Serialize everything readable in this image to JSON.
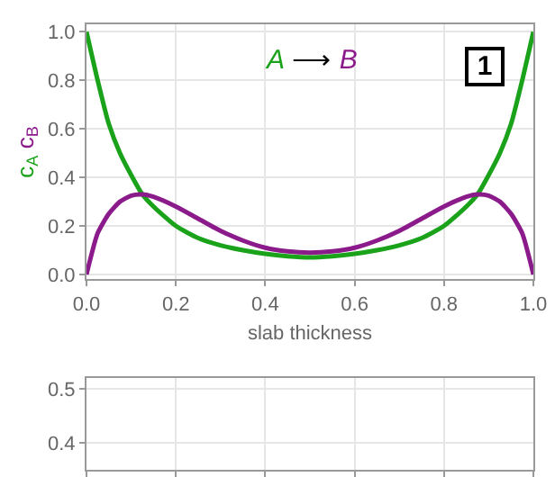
{
  "chart_data": [
    {
      "type": "line",
      "xlabel": "slab thickness",
      "ylabel": "c$_{A}$ c$_{B}$",
      "x": [
        0,
        0.025,
        0.05,
        0.075,
        0.1,
        0.125,
        0.15,
        0.2,
        0.25,
        0.3,
        0.35,
        0.4,
        0.45,
        0.5,
        0.55,
        0.6,
        0.65,
        0.7,
        0.75,
        0.8,
        0.85,
        0.875,
        0.9,
        0.925,
        0.95,
        0.975,
        1
      ],
      "series": [
        {
          "color": "#1aa31a",
          "values": [
            1.0,
            0.8,
            0.62,
            0.5,
            0.41,
            0.33,
            0.28,
            0.2,
            0.15,
            0.12,
            0.1,
            0.085,
            0.075,
            0.07,
            0.075,
            0.085,
            0.1,
            0.12,
            0.15,
            0.2,
            0.28,
            0.33,
            0.41,
            0.5,
            0.62,
            0.8,
            1.0
          ]
        },
        {
          "color": "#8b1a8b",
          "values": [
            0,
            0.17,
            0.25,
            0.3,
            0.325,
            0.33,
            0.32,
            0.28,
            0.23,
            0.18,
            0.14,
            0.11,
            0.095,
            0.09,
            0.095,
            0.11,
            0.14,
            0.18,
            0.23,
            0.28,
            0.32,
            0.33,
            0.325,
            0.3,
            0.25,
            0.17,
            0
          ]
        }
      ],
      "annotations": [
        "A ⟶ B",
        "1"
      ],
      "xlim": [
        0,
        1
      ],
      "xticks": [
        {
          "value": 0,
          "label": "0.0"
        },
        0.2,
        0.4,
        0.6,
        0.8,
        {
          "value": 1,
          "label": "1.0"
        }
      ],
      "ylim": [
        -0.02,
        1.03
      ],
      "yticks": [
        {
          "value": 0,
          "label": "0.0"
        },
        0.2,
        0.4,
        0.6,
        0.8,
        {
          "value": 1,
          "label": "1.0"
        }
      ],
      "grid": true,
      "line_style": "solid",
      "marker": "none"
    },
    {
      "type": "line",
      "xlim": [
        0,
        1
      ],
      "xticks": [
        {
          "value": 0,
          "label": null
        },
        {
          "value": 0.2,
          "label": null
        },
        {
          "value": 0.4,
          "label": null
        },
        {
          "value": 0.6,
          "label": null
        },
        {
          "value": 0.8,
          "label": null
        },
        {
          "value": 1,
          "label": null
        }
      ],
      "ylim": [
        0.35,
        0.52
      ],
      "yticks": [
        0.4,
        0.5
      ],
      "grid": true,
      "tick_labels": "y"
    }
  ]
}
